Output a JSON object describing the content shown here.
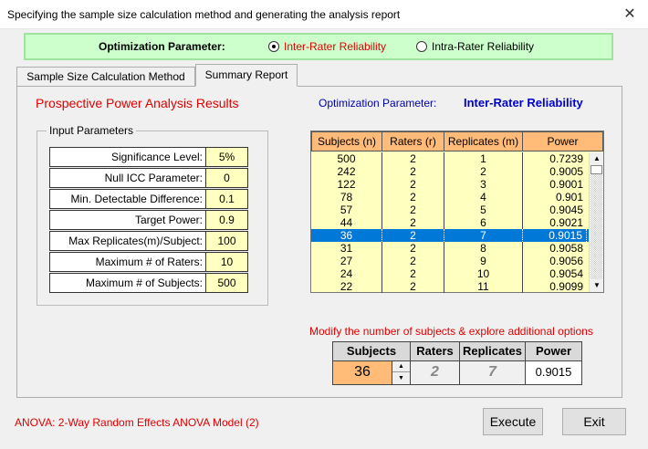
{
  "window": {
    "title": "Specifying the sample size calculation method and generating the analysis report",
    "close_glyph": "✕"
  },
  "optimization": {
    "label": "Optimization Parameter:",
    "options": [
      {
        "label": "Inter-Rater Reliability",
        "selected": true
      },
      {
        "label": "Intra-Rater Reliability",
        "selected": false
      }
    ]
  },
  "tabs": [
    {
      "label": "Sample Size Calculation Method",
      "active": false
    },
    {
      "label": "Summary Report",
      "active": true
    }
  ],
  "report": {
    "title": "Prospective Power Analysis Results",
    "opt_param_label": "Optimization Parameter:",
    "opt_param_value": "Inter-Rater Reliability"
  },
  "inputs": {
    "group_label": "Input Parameters",
    "rows": [
      {
        "label": "Significance Level:",
        "value": "5%"
      },
      {
        "label": "Null ICC Parameter:",
        "value": "0"
      },
      {
        "label": "Min. Detectable Difference:",
        "value": "0.1"
      },
      {
        "label": "Target Power:",
        "value": "0.9"
      },
      {
        "label": "Max Replicates(m)/Subject:",
        "value": "100"
      },
      {
        "label": "Maximum # of Raters:",
        "value": "10"
      },
      {
        "label": "Maximum # of Subjects:",
        "value": "500"
      }
    ]
  },
  "results_table": {
    "headers": [
      "Subjects (n)",
      "Raters (r)",
      "Replicates (m)",
      "Power"
    ],
    "rows": [
      [
        "500",
        "2",
        "1",
        "0.7239"
      ],
      [
        "242",
        "2",
        "2",
        "0.9005"
      ],
      [
        "122",
        "2",
        "3",
        "0.9001"
      ],
      [
        "78",
        "2",
        "4",
        "0.901"
      ],
      [
        "57",
        "2",
        "5",
        "0.9045"
      ],
      [
        "44",
        "2",
        "6",
        "0.9021"
      ],
      [
        "36",
        "2",
        "7",
        "0.9015"
      ],
      [
        "31",
        "2",
        "8",
        "0.9058"
      ],
      [
        "27",
        "2",
        "9",
        "0.9056"
      ],
      [
        "24",
        "2",
        "10",
        "0.9054"
      ],
      [
        "22",
        "2",
        "11",
        "0.9099"
      ]
    ],
    "selected_index": 6
  },
  "modify": {
    "text": "Modify the number of subjects & explore additional options",
    "headers": {
      "subjects": "Subjects",
      "raters": "Raters",
      "replicates": "Replicates",
      "power": "Power"
    },
    "values": {
      "subjects": "36",
      "raters": "2",
      "replicates": "7",
      "power": "0.9015"
    }
  },
  "footer": {
    "model": "ANOVA: 2-Way Random Effects ANOVA Model (2)",
    "execute_label": "Execute",
    "exit_label": "Exit"
  },
  "colors": {
    "accent_red": "#e00000",
    "header_orange": "#ffbb77",
    "cell_yellow": "#ffffc0",
    "green_bar": "#ccffcc",
    "selection_blue": "#0078d7"
  }
}
